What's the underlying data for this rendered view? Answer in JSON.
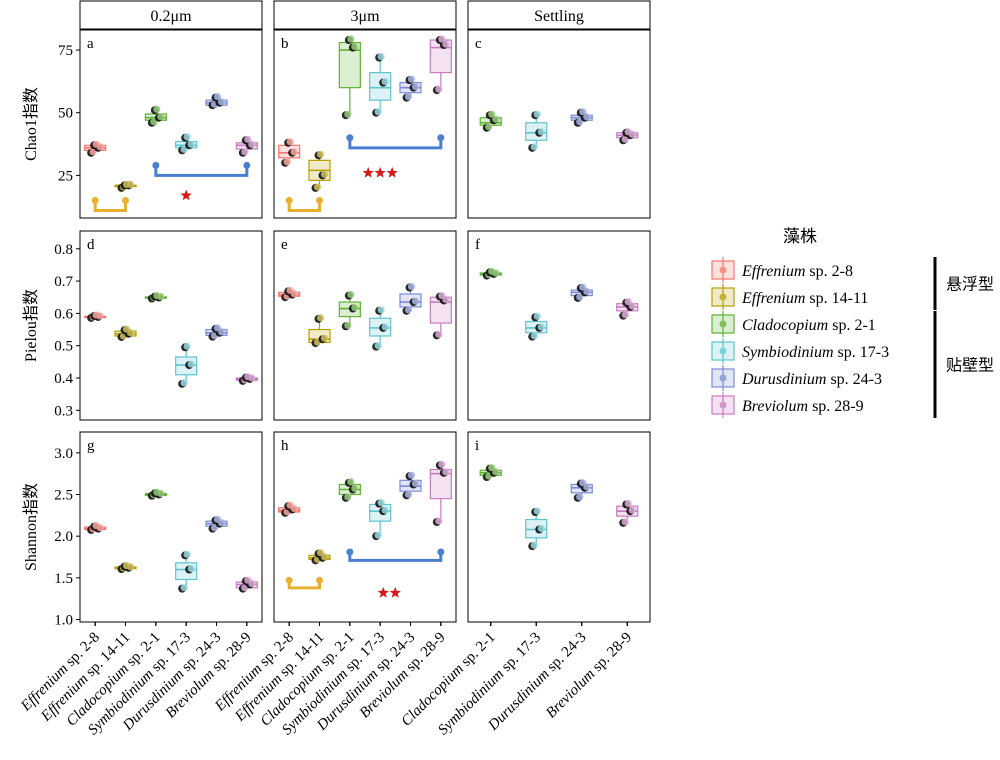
{
  "chart_data": {
    "type": "box",
    "facet_columns": [
      "0.2μm",
      "3μm",
      "Settling"
    ],
    "row_ylabels": [
      "Chao1指数",
      "Pielou指数",
      "Shannon指数"
    ],
    "panel_letters": [
      "a",
      "b",
      "c",
      "d",
      "e",
      "f",
      "g",
      "h",
      "i"
    ],
    "categories": [
      "Effrenium sp. 2-8",
      "Effrenium sp. 14-11",
      "Cladocopium sp. 2-1",
      "Symbiodinium sp. 17-3",
      "Durusdinium sp. 24-3",
      "Breviolum sp. 28-9"
    ],
    "strains": [
      {
        "genus": "Effrenium",
        "rest": " sp. 2-8",
        "color": "#F8766D"
      },
      {
        "genus": "Effrenium",
        "rest": " sp. 14-11",
        "color": "#B79F00"
      },
      {
        "genus": "Cladocopium",
        "rest": " sp. 2-1",
        "color": "#5FB233"
      },
      {
        "genus": "Symbiodinium",
        "rest": " sp. 17-3",
        "color": "#5EC4D0"
      },
      {
        "genus": "Durusdinium",
        "rest": " sp. 24-3",
        "color": "#7B8BD6"
      },
      {
        "genus": "Breviolum",
        "rest": " sp. 28-9",
        "color": "#C77CC1"
      }
    ],
    "legend": {
      "title": "藻株",
      "groups": [
        {
          "label": "悬浮型",
          "strains": [
            0,
            1
          ]
        },
        {
          "label": "贴壁型",
          "strains": [
            2,
            3,
            4,
            5
          ]
        }
      ]
    },
    "rows": [
      {
        "metric": "Chao1",
        "ylim": [
          8,
          83
        ],
        "yticks": [
          25,
          50,
          75
        ],
        "panels": [
          {
            "cats": [
              0,
              1,
              2,
              3,
              4,
              5
            ],
            "boxes": [
              {
                "min": 34,
                "q1": 35,
                "med": 36,
                "q3": 37,
                "max": 38,
                "points": [
                  34,
                  36,
                  37
                ]
              },
              {
                "min": 20,
                "q1": 20.5,
                "med": 21,
                "q3": 21,
                "max": 21.5,
                "points": [
                  20,
                  21,
                  21
                ]
              },
              {
                "min": 45,
                "q1": 47,
                "med": 48,
                "q3": 49.5,
                "max": 51,
                "points": [
                  46,
                  48,
                  51
                ]
              },
              {
                "min": 35,
                "q1": 36,
                "med": 37,
                "q3": 38.5,
                "max": 41,
                "points": [
                  35,
                  37,
                  40
                ]
              },
              {
                "min": 52,
                "q1": 53,
                "med": 54,
                "q3": 55,
                "max": 56,
                "points": [
                  53,
                  54,
                  56
                ]
              },
              {
                "min": 34,
                "q1": 35.5,
                "med": 37,
                "q3": 38,
                "max": 39,
                "points": [
                  34,
                  37,
                  39
                ]
              }
            ],
            "brackets": [
              {
                "from": 0,
                "to": 1,
                "y": 11,
                "tip": 15,
                "color": "#E8B030"
              },
              {
                "from": 2,
                "to": 5,
                "y": 25,
                "tip": 29,
                "color": "#4A7FD0"
              }
            ],
            "stars": {
              "count": 1,
              "pos": 3.0,
              "y": 17
            }
          },
          {
            "cats": [
              0,
              1,
              2,
              3,
              4,
              5
            ],
            "boxes": [
              {
                "min": 30,
                "q1": 32,
                "med": 34,
                "q3": 37,
                "max": 38,
                "points": [
                  30,
                  34,
                  38
                ]
              },
              {
                "min": 20,
                "q1": 23,
                "med": 27,
                "q3": 31,
                "max": 33,
                "points": [
                  20,
                  25,
                  33
                ]
              },
              {
                "min": 49,
                "q1": 60,
                "med": 75,
                "q3": 78,
                "max": 80,
                "points": [
                  49,
                  76,
                  79
                ]
              },
              {
                "min": 50,
                "q1": 55,
                "med": 60,
                "q3": 66,
                "max": 73,
                "points": [
                  50,
                  62,
                  72
                ]
              },
              {
                "min": 56,
                "q1": 58,
                "med": 60,
                "q3": 62,
                "max": 64,
                "points": [
                  56,
                  60,
                  63
                ]
              },
              {
                "min": 59,
                "q1": 66,
                "med": 76,
                "q3": 79,
                "max": 80,
                "points": [
                  59,
                  77,
                  79
                ]
              }
            ],
            "brackets": [
              {
                "from": 0,
                "to": 1,
                "y": 11,
                "tip": 15,
                "color": "#E8B030"
              },
              {
                "from": 2,
                "to": 5,
                "y": 36,
                "tip": 40,
                "color": "#4A7FD0"
              }
            ],
            "stars": {
              "count": 3,
              "pos": 3.0,
              "y": 26
            }
          },
          {
            "cats": [
              2,
              3,
              4,
              5
            ],
            "boxes": [
              {
                "min": 44,
                "q1": 45,
                "med": 46,
                "q3": 48,
                "max": 49,
                "points": [
                  44,
                  47,
                  49
                ]
              },
              {
                "min": 36,
                "q1": 39,
                "med": 42,
                "q3": 46,
                "max": 49,
                "points": [
                  36,
                  42,
                  49
                ]
              },
              {
                "min": 46,
                "q1": 47,
                "med": 48,
                "q3": 49,
                "max": 50,
                "points": [
                  46,
                  48,
                  50
                ]
              },
              {
                "min": 38,
                "q1": 40,
                "med": 41,
                "q3": 42,
                "max": 42,
                "points": [
                  39,
                  41,
                  42
                ]
              }
            ],
            "brackets": [],
            "stars": null
          }
        ]
      },
      {
        "metric": "Pielou",
        "ylim": [
          0.27,
          0.855
        ],
        "yticks": [
          0.3,
          0.4,
          0.5,
          0.6,
          0.7,
          0.8
        ],
        "panels": [
          {
            "cats": [
              0,
              1,
              2,
              3,
              4,
              5
            ],
            "boxes": [
              {
                "min": 0.585,
                "q1": 0.587,
                "med": 0.589,
                "q3": 0.591,
                "max": 0.593,
                "points": [
                  0.586,
                  0.589,
                  0.592
                ]
              },
              {
                "min": 0.525,
                "q1": 0.53,
                "med": 0.537,
                "q3": 0.545,
                "max": 0.55,
                "points": [
                  0.527,
                  0.537,
                  0.548
                ]
              },
              {
                "min": 0.645,
                "q1": 0.647,
                "med": 0.649,
                "q3": 0.651,
                "max": 0.653,
                "points": [
                  0.646,
                  0.649,
                  0.652
                ]
              },
              {
                "min": 0.38,
                "q1": 0.41,
                "med": 0.44,
                "q3": 0.465,
                "max": 0.5,
                "points": [
                  0.382,
                  0.44,
                  0.495
                ]
              },
              {
                "min": 0.525,
                "q1": 0.532,
                "med": 0.54,
                "q3": 0.55,
                "max": 0.555,
                "points": [
                  0.528,
                  0.54,
                  0.552
                ]
              },
              {
                "min": 0.39,
                "q1": 0.393,
                "med": 0.396,
                "q3": 0.4,
                "max": 0.403,
                "points": [
                  0.391,
                  0.397,
                  0.401
                ]
              }
            ],
            "brackets": [],
            "stars": null
          },
          {
            "cats": [
              0,
              1,
              2,
              3,
              4,
              5
            ],
            "boxes": [
              {
                "min": 0.648,
                "q1": 0.653,
                "med": 0.658,
                "q3": 0.665,
                "max": 0.67,
                "points": [
                  0.65,
                  0.658,
                  0.668
                ]
              },
              {
                "min": 0.505,
                "q1": 0.51,
                "med": 0.52,
                "q3": 0.55,
                "max": 0.585,
                "points": [
                  0.508,
                  0.52,
                  0.583
                ]
              },
              {
                "min": 0.56,
                "q1": 0.59,
                "med": 0.615,
                "q3": 0.635,
                "max": 0.66,
                "points": [
                  0.56,
                  0.615,
                  0.655
                ]
              },
              {
                "min": 0.495,
                "q1": 0.53,
                "med": 0.555,
                "q3": 0.585,
                "max": 0.61,
                "points": [
                  0.497,
                  0.555,
                  0.608
                ]
              },
              {
                "min": 0.605,
                "q1": 0.62,
                "med": 0.635,
                "q3": 0.66,
                "max": 0.685,
                "points": [
                  0.608,
                  0.635,
                  0.68
                ]
              },
              {
                "min": 0.53,
                "q1": 0.57,
                "med": 0.635,
                "q3": 0.65,
                "max": 0.655,
                "points": [
                  0.532,
                  0.64,
                  0.652
                ]
              }
            ],
            "brackets": [],
            "stars": null
          },
          {
            "cats": [
              2,
              3,
              4,
              5
            ],
            "boxes": [
              {
                "min": 0.716,
                "q1": 0.719,
                "med": 0.722,
                "q3": 0.725,
                "max": 0.728,
                "points": [
                  0.717,
                  0.722,
                  0.727
                ]
              },
              {
                "min": 0.525,
                "q1": 0.54,
                "med": 0.555,
                "q3": 0.575,
                "max": 0.59,
                "points": [
                  0.528,
                  0.555,
                  0.588
                ]
              },
              {
                "min": 0.645,
                "q1": 0.655,
                "med": 0.665,
                "q3": 0.672,
                "max": 0.68,
                "points": [
                  0.648,
                  0.665,
                  0.678
                ]
              },
              {
                "min": 0.59,
                "q1": 0.608,
                "med": 0.62,
                "q3": 0.63,
                "max": 0.635,
                "points": [
                  0.593,
                  0.62,
                  0.633
                ]
              }
            ],
            "brackets": [],
            "stars": null
          }
        ]
      },
      {
        "metric": "Shannon",
        "ylim": [
          0.97,
          3.25
        ],
        "yticks": [
          1.0,
          1.5,
          2.0,
          2.5,
          3.0
        ],
        "panels": [
          {
            "cats": [
              0,
              1,
              2,
              3,
              4,
              5
            ],
            "boxes": [
              {
                "min": 2.07,
                "q1": 2.08,
                "med": 2.09,
                "q3": 2.11,
                "max": 2.12,
                "points": [
                  2.075,
                  2.09,
                  2.115
                ]
              },
              {
                "min": 1.6,
                "q1": 1.61,
                "med": 1.62,
                "q3": 1.63,
                "max": 1.64,
                "points": [
                  1.605,
                  1.62,
                  1.635
                ]
              },
              {
                "min": 2.48,
                "q1": 2.49,
                "med": 2.5,
                "q3": 2.51,
                "max": 2.52,
                "points": [
                  2.485,
                  2.5,
                  2.515
                ]
              },
              {
                "min": 1.36,
                "q1": 1.48,
                "med": 1.6,
                "q3": 1.68,
                "max": 1.78,
                "points": [
                  1.37,
                  1.6,
                  1.77
                ]
              },
              {
                "min": 2.08,
                "q1": 2.12,
                "med": 2.15,
                "q3": 2.18,
                "max": 2.2,
                "points": [
                  2.09,
                  2.15,
                  2.19
                ]
              },
              {
                "min": 1.36,
                "q1": 1.38,
                "med": 1.42,
                "q3": 1.45,
                "max": 1.47,
                "points": [
                  1.37,
                  1.42,
                  1.46
                ]
              }
            ],
            "brackets": [],
            "stars": null
          },
          {
            "cats": [
              0,
              1,
              2,
              3,
              4,
              5
            ],
            "boxes": [
              {
                "min": 2.27,
                "q1": 2.29,
                "med": 2.31,
                "q3": 2.34,
                "max": 2.37,
                "points": [
                  2.28,
                  2.32,
                  2.36
                ]
              },
              {
                "min": 1.7,
                "q1": 1.72,
                "med": 1.74,
                "q3": 1.77,
                "max": 1.8,
                "points": [
                  1.71,
                  1.74,
                  1.79
                ]
              },
              {
                "min": 2.45,
                "q1": 2.5,
                "med": 2.56,
                "q3": 2.62,
                "max": 2.65,
                "points": [
                  2.46,
                  2.56,
                  2.64
                ]
              },
              {
                "min": 2.0,
                "q1": 2.18,
                "med": 2.3,
                "q3": 2.38,
                "max": 2.4,
                "points": [
                  2.0,
                  2.3,
                  2.39
                ]
              },
              {
                "min": 2.48,
                "q1": 2.54,
                "med": 2.6,
                "q3": 2.67,
                "max": 2.73,
                "points": [
                  2.49,
                  2.62,
                  2.72
                ]
              },
              {
                "min": 2.16,
                "q1": 2.45,
                "med": 2.75,
                "q3": 2.8,
                "max": 2.87,
                "points": [
                  2.17,
                  2.76,
                  2.85
                ]
              }
            ],
            "brackets": [
              {
                "from": 0,
                "to": 1,
                "y": 1.38,
                "tip": 1.47,
                "color": "#E8B030"
              },
              {
                "from": 2,
                "to": 5,
                "y": 1.71,
                "tip": 1.81,
                "color": "#4A7FD0"
              }
            ],
            "stars": {
              "count": 2,
              "pos": 3.3,
              "y": 1.32
            }
          },
          {
            "cats": [
              2,
              3,
              4,
              5
            ],
            "boxes": [
              {
                "min": 2.7,
                "q1": 2.73,
                "med": 2.76,
                "q3": 2.79,
                "max": 2.82,
                "points": [
                  2.71,
                  2.76,
                  2.81
                ]
              },
              {
                "min": 1.87,
                "q1": 1.98,
                "med": 2.08,
                "q3": 2.2,
                "max": 2.3,
                "points": [
                  1.88,
                  2.08,
                  2.29
                ]
              },
              {
                "min": 2.45,
                "q1": 2.52,
                "med": 2.58,
                "q3": 2.62,
                "max": 2.64,
                "points": [
                  2.46,
                  2.58,
                  2.63
                ]
              },
              {
                "min": 2.15,
                "q1": 2.24,
                "med": 2.3,
                "q3": 2.36,
                "max": 2.39,
                "points": [
                  2.16,
                  2.3,
                  2.38
                ]
              }
            ],
            "brackets": [],
            "stars": null
          }
        ]
      }
    ]
  }
}
